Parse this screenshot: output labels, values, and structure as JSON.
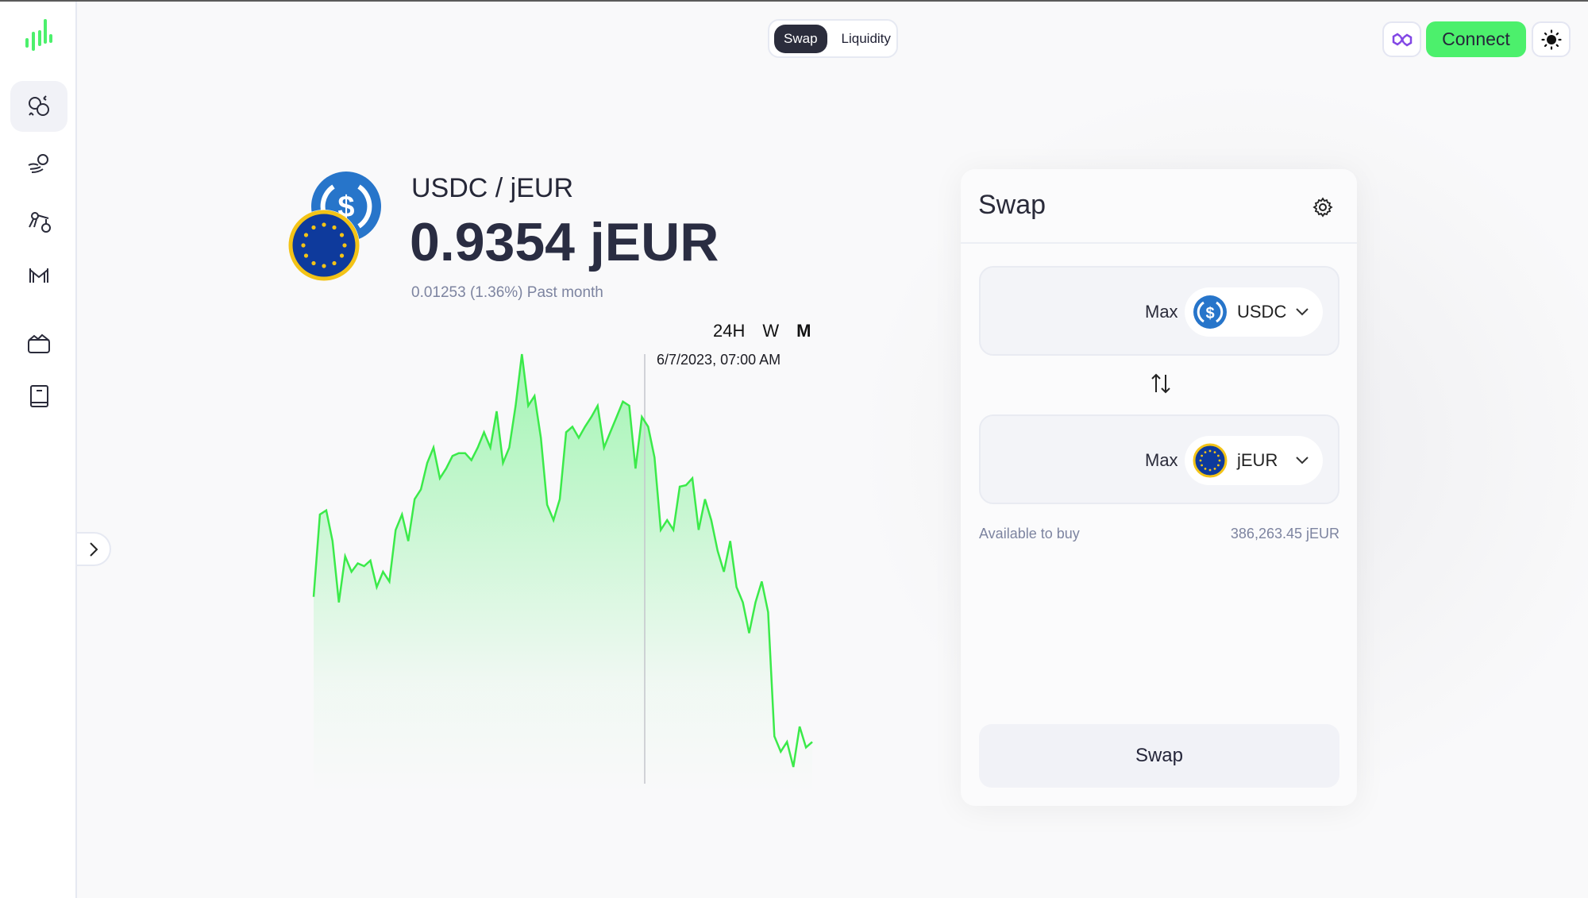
{
  "header": {
    "toggle": [
      "Swap",
      "Liquidity"
    ],
    "active_toggle": "Swap",
    "connect_label": "Connect",
    "network_icon": "polygon-icon",
    "theme_icon": "sun-icon"
  },
  "sidebar": {
    "items": [
      {
        "icon": "swap-coins-icon",
        "active": true
      },
      {
        "icon": "hand-coin-icon",
        "active": false
      },
      {
        "icon": "lever-icon",
        "active": false
      },
      {
        "icon": "bridge-icon",
        "active": false
      },
      {
        "icon": "basket-icon",
        "active": false
      },
      {
        "icon": "book-icon",
        "active": false
      }
    ],
    "expand_icon": "chevron-right-icon"
  },
  "pair": {
    "title": "USDC / jEUR",
    "price": "0.9354 jEUR",
    "change": "0.01253 (1.36%) Past month",
    "periods": [
      "24H",
      "W",
      "M"
    ],
    "active_period": "M",
    "tooltip_date": "6/7/2023, 07:00 AM"
  },
  "colors": {
    "accent": "#4cf06c",
    "line": "#3bea4a",
    "usdc": "#2775ca",
    "eur": "#0e3a9c"
  },
  "chart_data": {
    "type": "area",
    "values": [
      0.9458,
      0.9517,
      0.952,
      0.9498,
      0.9454,
      0.9487,
      0.9476,
      0.9482,
      0.948,
      0.9484,
      0.9465,
      0.9476,
      0.9469,
      0.9506,
      0.9517,
      0.9498,
      0.9528,
      0.9535,
      0.9554,
      0.9565,
      0.9543,
      0.955,
      0.9559,
      0.9561,
      0.9561,
      0.9556,
      0.9565,
      0.9576,
      0.9565,
      0.9591,
      0.9554,
      0.9565,
      0.9595,
      0.9632,
      0.9595,
      0.9602,
      0.9572,
      0.9524,
      0.9513,
      0.9528,
      0.9576,
      0.958,
      0.9572,
      0.958,
      0.9587,
      0.9595,
      0.9565,
      0.9576,
      0.9587,
      0.9598,
      0.9595,
      0.955,
      0.9587,
      0.958,
      0.9558,
      0.9506,
      0.9513,
      0.9506,
      0.9537,
      0.9538,
      0.9543,
      0.9506,
      0.9528,
      0.9513,
      0.9491,
      0.9476,
      0.9498,
      0.9465,
      0.9454,
      0.9432,
      0.9454,
      0.9469,
      0.9447,
      0.9358,
      0.9347,
      0.9354,
      0.9336,
      0.9365,
      0.935,
      0.9354
    ],
    "grid": false,
    "legend": "none"
  },
  "swap": {
    "title": "Swap",
    "settings_icon": "gear-icon",
    "from": {
      "max": "Max",
      "token": "USDC"
    },
    "to": {
      "max": "Max",
      "token": "jEUR"
    },
    "available_label": "Available to buy",
    "available_value": "386,263.45 jEUR",
    "button": "Swap"
  }
}
